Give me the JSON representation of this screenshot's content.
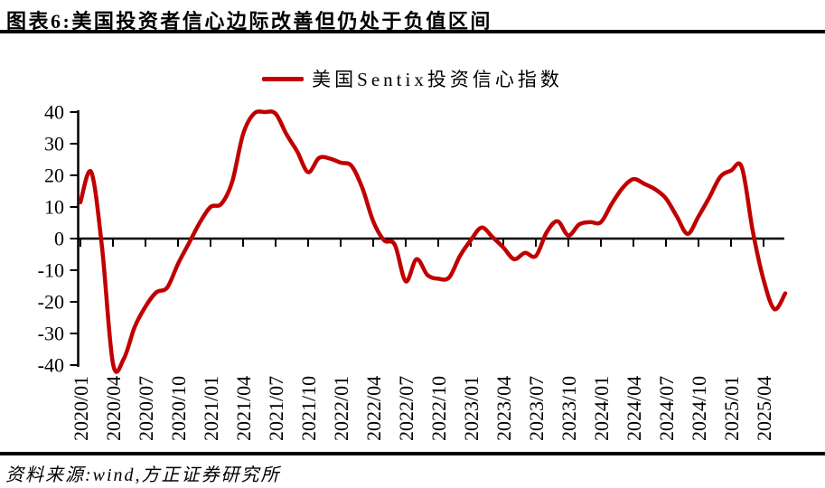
{
  "header": {
    "title": "图表6:美国投资者信心边际改善但仍处于负值区间"
  },
  "legend": {
    "label": "美国Sentix投资信心指数",
    "line_color": "#C00000"
  },
  "footer": {
    "source": "资料来源:wind,方正证券研究所"
  },
  "chart_data": {
    "type": "line",
    "title": "美国Sentix投资信心指数",
    "xlabel": "",
    "ylabel": "",
    "ylim": [
      -40,
      40
    ],
    "y_ticks": [
      40,
      30,
      20,
      10,
      0,
      -10,
      -20,
      -30,
      -40
    ],
    "grid": false,
    "legend_position": "top-center",
    "line_color": "#C00000",
    "axis_color": "#000000",
    "zero_axis_as_x_axis": true,
    "x_tick_labels": [
      "2020/01",
      "2020/04",
      "2020/07",
      "2020/10",
      "2021/01",
      "2021/04",
      "2021/07",
      "2021/10",
      "2022/01",
      "2022/04",
      "2022/07",
      "2022/10",
      "2023/01",
      "2023/04",
      "2023/07",
      "2023/10",
      "2024/01",
      "2024/04",
      "2024/07",
      "2024/10",
      "2025/01",
      "2025/04"
    ],
    "x": [
      "2020/01",
      "2020/02",
      "2020/03",
      "2020/04",
      "2020/05",
      "2020/06",
      "2020/07",
      "2020/08",
      "2020/09",
      "2020/10",
      "2020/11",
      "2020/12",
      "2021/01",
      "2021/02",
      "2021/03",
      "2021/04",
      "2021/05",
      "2021/06",
      "2021/07",
      "2021/08",
      "2021/09",
      "2021/10",
      "2021/11",
      "2021/12",
      "2022/01",
      "2022/02",
      "2022/03",
      "2022/04",
      "2022/05",
      "2022/06",
      "2022/07",
      "2022/08",
      "2022/09",
      "2022/10",
      "2022/11",
      "2022/12",
      "2023/01",
      "2023/02",
      "2023/03",
      "2023/04",
      "2023/05",
      "2023/06",
      "2023/07",
      "2023/08",
      "2023/09",
      "2023/10",
      "2023/11",
      "2023/12",
      "2024/01",
      "2024/02",
      "2024/03",
      "2024/04",
      "2024/05",
      "2024/06",
      "2024/07",
      "2024/08",
      "2024/09",
      "2024/10",
      "2024/11",
      "2024/12",
      "2025/01",
      "2025/02",
      "2025/03",
      "2025/04",
      "2025/05",
      "2025/06"
    ],
    "values": [
      11.5,
      21,
      -3,
      -39.5,
      -38,
      -28,
      -21.5,
      -17,
      -15.5,
      -8,
      -1.5,
      5,
      10,
      11,
      18,
      33,
      39.5,
      40,
      39.5,
      33,
      27.5,
      21,
      25.5,
      25.3,
      24,
      23,
      16,
      5.5,
      -0.5,
      -2,
      -13.5,
      -6.5,
      -11.5,
      -12.7,
      -12.3,
      -5.5,
      -0.5,
      3.5,
      0.5,
      -2.8,
      -6.5,
      -4.5,
      -5.5,
      2,
      5.5,
      1,
      4.5,
      5.2,
      5.2,
      11,
      16,
      18.8,
      17.3,
      15.6,
      12.7,
      7,
      1.5,
      7,
      13,
      19.5,
      21.5,
      22.5,
      2.5,
      -13,
      -22.3,
      -17.3
    ]
  }
}
